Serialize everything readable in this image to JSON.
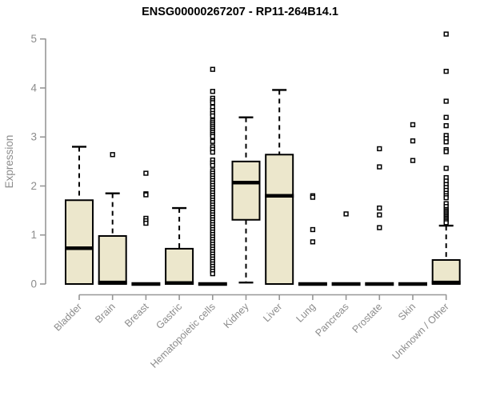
{
  "title": "ENSG00000267207 - RP11-264B14.1",
  "colors": {
    "background": "#ffffff",
    "box_fill": "#ECE7CC",
    "box_stroke": "#000000",
    "median_color": "#000000",
    "whisker_color": "#000000",
    "outlier_stroke": "#000000",
    "outlier_fill": "#ffffff",
    "axis_line": "#979797",
    "axis_text": "#8c8c8c",
    "title_text": "#000000"
  },
  "chart_data": {
    "type": "boxplot",
    "title": "ENSG00000267207 - RP11-264B14.1",
    "xlabel": "",
    "ylabel": "Expression",
    "ylim": [
      0,
      5
    ],
    "yticks": [
      0,
      1,
      2,
      3,
      4,
      5
    ],
    "grid": false,
    "legend": false,
    "categories": [
      "Bladder",
      "Brain",
      "Breast",
      "Gastric",
      "Hematopoietic cells",
      "Kidney",
      "Liver",
      "Lung",
      "Pancreas",
      "Prostate",
      "Skin",
      "Unknown / Other"
    ],
    "series": [
      {
        "name": "Bladder",
        "q1": 0,
        "median": 0.73,
        "q3": 1.71,
        "whisker_low": 0,
        "whisker_high": 2.8,
        "outliers": []
      },
      {
        "name": "Brain",
        "q1": 0,
        "median": 0.03,
        "q3": 0.98,
        "whisker_low": 0,
        "whisker_high": 1.85,
        "outliers": [
          2.64
        ]
      },
      {
        "name": "Breast",
        "q1": 0,
        "median": 0,
        "q3": 0,
        "whisker_low": 0,
        "whisker_high": 0,
        "outliers": [
          2.26,
          1.84,
          1.82,
          1.34,
          1.29,
          1.24
        ]
      },
      {
        "name": "Gastric",
        "q1": 0,
        "median": 0.02,
        "q3": 0.72,
        "whisker_low": 0,
        "whisker_high": 1.55,
        "outliers": []
      },
      {
        "name": "Hematopoietic cells",
        "q1": 0,
        "median": 0,
        "q3": 0,
        "whisker_low": 0,
        "whisker_high": 0,
        "outliers": [
          4.38,
          3.93,
          3.79,
          3.74,
          3.7,
          3.61,
          3.54,
          3.48,
          3.43,
          3.33,
          3.29,
          3.25,
          3.21,
          3.17,
          3.13,
          3.09,
          3.05,
          3.01,
          2.91,
          2.8,
          2.75,
          2.69,
          2.53,
          2.47,
          2.42,
          2.31,
          2.26,
          2.21,
          2.16,
          2.11,
          2.06,
          2.01,
          1.96,
          1.91,
          1.86,
          1.81,
          1.76,
          1.71,
          1.66,
          1.61,
          1.56,
          1.51,
          1.46,
          1.41,
          1.36,
          1.31,
          1.26,
          1.21,
          1.16,
          1.11,
          1.06,
          1.01,
          0.96,
          0.91,
          0.86,
          0.81,
          0.76,
          0.71,
          0.66,
          0.61,
          0.56,
          0.51,
          0.46,
          0.41,
          0.36,
          0.31,
          0.26,
          0.21
        ]
      },
      {
        "name": "Kidney",
        "q1": 1.31,
        "median": 2.07,
        "q3": 2.5,
        "whisker_low": 0.03,
        "whisker_high": 3.4,
        "outliers": []
      },
      {
        "name": "Liver",
        "q1": 0,
        "median": 1.8,
        "q3": 2.64,
        "whisker_low": 0,
        "whisker_high": 3.96,
        "outliers": []
      },
      {
        "name": "Lung",
        "q1": 0,
        "median": 0,
        "q3": 0,
        "whisker_low": 0,
        "whisker_high": 0,
        "outliers": [
          1.8,
          1.77,
          1.11,
          0.86
        ]
      },
      {
        "name": "Pancreas",
        "q1": 0,
        "median": 0,
        "q3": 0,
        "whisker_low": 0,
        "whisker_high": 0,
        "outliers": [
          1.43
        ]
      },
      {
        "name": "Prostate",
        "q1": 0,
        "median": 0,
        "q3": 0,
        "whisker_low": 0,
        "whisker_high": 0,
        "outliers": [
          2.76,
          2.39,
          1.55,
          1.41,
          1.15
        ]
      },
      {
        "name": "Skin",
        "q1": 0,
        "median": 0,
        "q3": 0,
        "whisker_low": 0,
        "whisker_high": 0,
        "outliers": [
          3.25,
          2.92,
          2.52
        ]
      },
      {
        "name": "Unknown / Other",
        "q1": 0,
        "median": 0.03,
        "q3": 0.49,
        "whisker_low": 0,
        "whisker_high": 1.19,
        "outliers": [
          5.1,
          4.34,
          3.73,
          3.4,
          3.23,
          3.03,
          2.97,
          2.9,
          2.74,
          2.7,
          2.36,
          2.17,
          2.1,
          2.03,
          1.97,
          1.91,
          1.85,
          1.8,
          1.76,
          1.64,
          1.58,
          1.52,
          1.49,
          1.46,
          1.43,
          1.4,
          1.37,
          1.34,
          1.31,
          1.28,
          1.25
        ]
      }
    ]
  }
}
